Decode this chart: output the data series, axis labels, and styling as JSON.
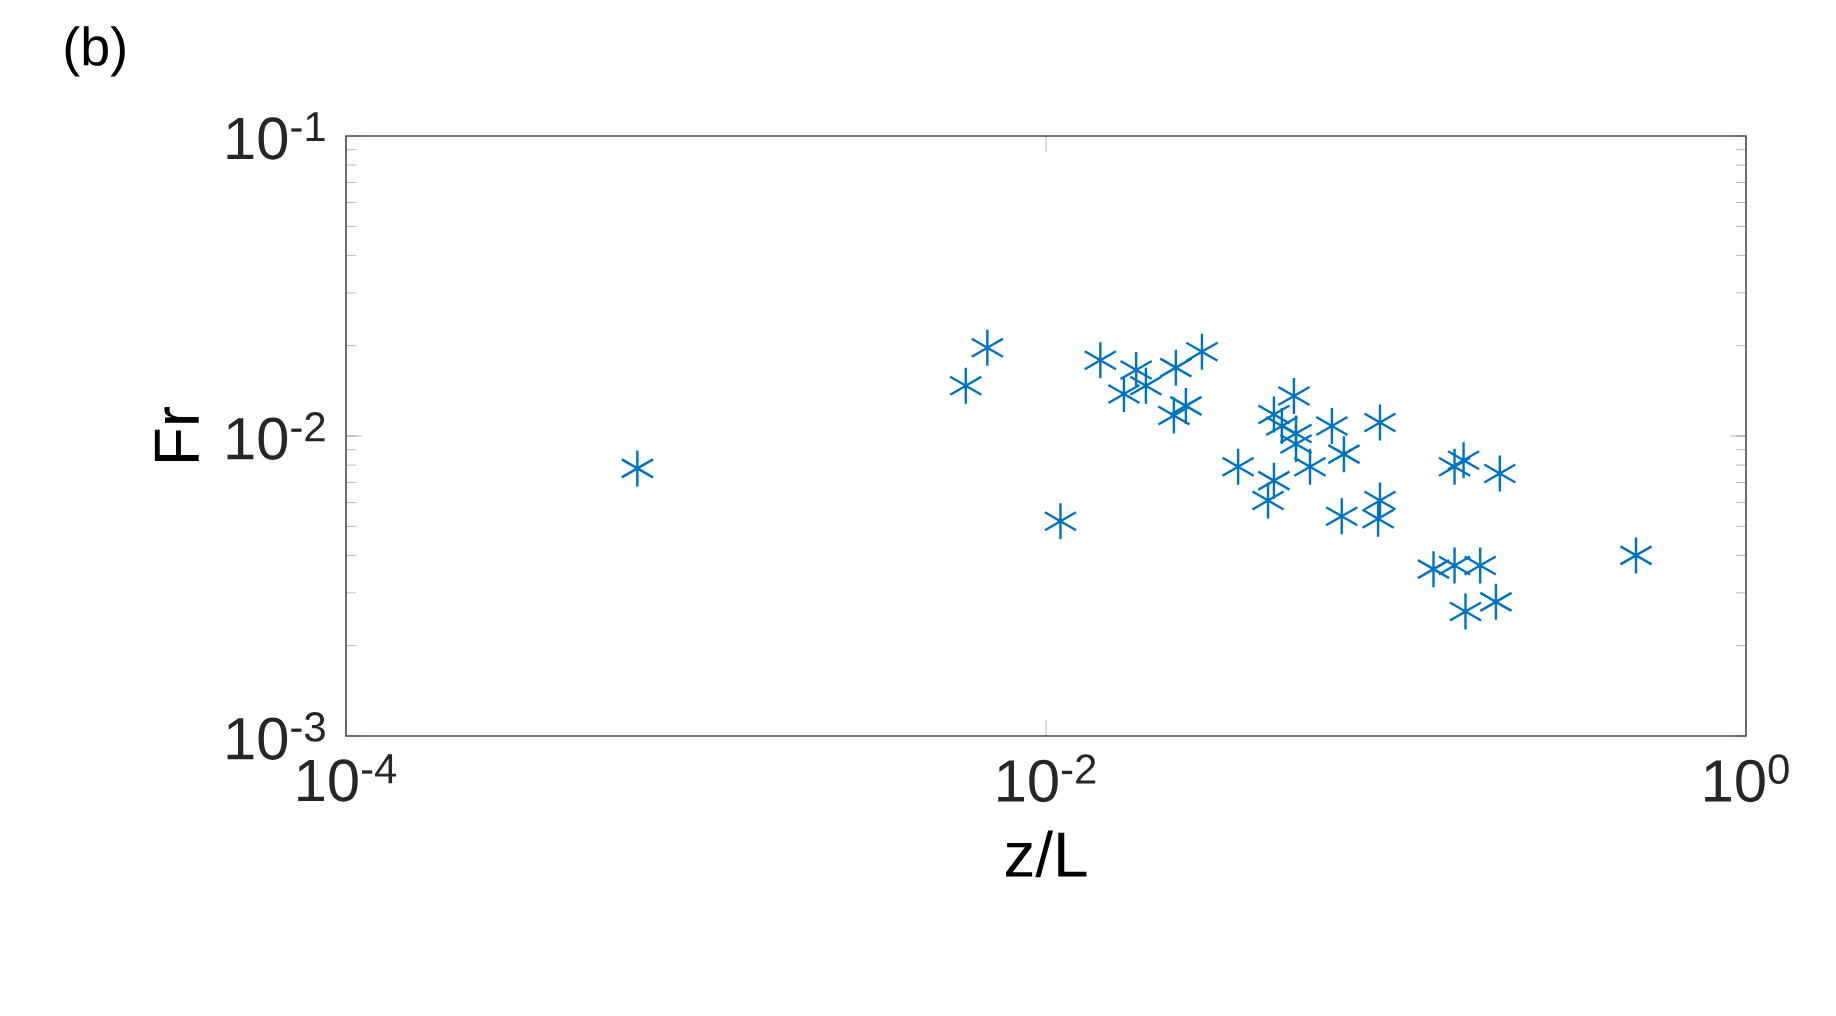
{
  "chart_data": {
    "type": "scatter",
    "title": "(b)",
    "xlabel": "z/L",
    "ylabel": "Fr",
    "log": "xy",
    "marker": "cross",
    "color": "#0072bd",
    "xlim": [
      0.0001,
      1
    ],
    "ylim": [
      0.001,
      0.1
    ],
    "xticks": [
      {
        "value": 0.0001,
        "label": "10$^{-4}$"
      },
      {
        "value": 0.01,
        "label": "10$^{-2}$"
      },
      {
        "value": 1,
        "label": "10$^{0}$"
      }
    ],
    "yticks": [
      {
        "value": 0.001,
        "label": "10$^{-3}$"
      },
      {
        "value": 0.01,
        "label": "10$^{-2}$"
      },
      {
        "value": 0.1,
        "label": "10$^{-1}$"
      }
    ],
    "x": [
      0.00068,
      0.0059,
      0.0068,
      0.011,
      0.0143,
      0.0167,
      0.0181,
      0.0193,
      0.0232,
      0.0235,
      0.0251,
      0.0279,
      0.0354,
      0.0431,
      0.0448,
      0.0448,
      0.0472,
      0.0511,
      0.0518,
      0.0518,
      0.0568,
      0.0656,
      0.07,
      0.071,
      0.0889,
      0.09,
      0.09,
      0.128,
      0.147,
      0.147,
      0.156,
      0.158,
      0.174,
      0.193,
      0.198,
      0.485
    ],
    "values": [
      0.0078,
      0.0147,
      0.0197,
      0.0052,
      0.0179,
      0.0138,
      0.0166,
      0.0147,
      0.0117,
      0.0169,
      0.0126,
      0.0191,
      0.0079,
      0.0061,
      0.0071,
      0.0118,
      0.0108,
      0.0136,
      0.0102,
      0.0094,
      0.0079,
      0.0108,
      0.0054,
      0.0087,
      0.0053,
      0.0061,
      0.0111,
      0.0036,
      0.0037,
      0.0079,
      0.0083,
      0.0026,
      0.0037,
      0.0028,
      0.0075,
      0.004
    ]
  }
}
